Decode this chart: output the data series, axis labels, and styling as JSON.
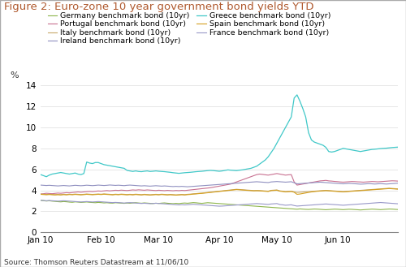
{
  "title": "Figure 2: Euro-zone 10 year government bond yields YTD",
  "ylabel": "%",
  "source": "Source: Thomson Reuters Datastream at 11/06/10",
  "ylim": [
    0,
    14
  ],
  "yticks": [
    0,
    2,
    4,
    6,
    8,
    10,
    12,
    14
  ],
  "series": {
    "Germany": {
      "color": "#8db54b",
      "linewidth": 0.8,
      "label": "Germany benchmark bond (10yr)",
      "data": [
        3.05,
        3.02,
        2.98,
        3.01,
        2.97,
        2.95,
        2.92,
        2.9,
        2.93,
        2.91,
        2.88,
        2.86,
        2.9,
        2.88,
        2.85,
        2.87,
        2.89,
        2.86,
        2.84,
        2.82,
        2.85,
        2.83,
        2.8,
        2.82,
        2.79,
        2.78,
        2.82,
        2.8,
        2.78,
        2.76,
        2.79,
        2.77,
        2.8,
        2.82,
        2.79,
        2.77,
        2.8,
        2.78,
        2.76,
        2.74,
        2.77,
        2.75,
        2.78,
        2.8,
        2.77,
        2.75,
        2.73,
        2.76,
        2.74,
        2.77,
        2.79,
        2.77,
        2.8,
        2.83,
        2.81,
        2.78,
        2.76,
        2.79,
        2.82,
        2.8,
        2.78,
        2.76,
        2.74,
        2.72,
        2.7,
        2.68,
        2.66,
        2.64,
        2.62,
        2.6,
        2.58,
        2.56,
        2.54,
        2.52,
        2.5,
        2.48,
        2.46,
        2.44,
        2.42,
        2.4,
        2.38,
        2.36,
        2.34,
        2.32,
        2.3,
        2.28,
        2.26,
        2.24,
        2.22,
        2.2,
        2.23,
        2.21,
        2.19,
        2.18,
        2.2,
        2.22,
        2.21,
        2.19,
        2.17,
        2.15,
        2.17,
        2.19,
        2.21,
        2.2,
        2.18,
        2.16,
        2.18,
        2.2,
        2.19,
        2.17,
        2.15,
        2.13,
        2.15,
        2.17,
        2.19,
        2.21,
        2.2,
        2.18,
        2.16,
        2.18,
        2.2,
        2.22,
        2.21,
        2.19,
        2.17
      ]
    },
    "Portugal": {
      "color": "#c87090",
      "linewidth": 0.8,
      "label": "Portugal benchmark bond (10yr)",
      "data": [
        3.65,
        3.68,
        3.72,
        3.7,
        3.68,
        3.71,
        3.74,
        3.72,
        3.75,
        3.78,
        3.76,
        3.79,
        3.82,
        3.85,
        3.82,
        3.85,
        3.88,
        3.9,
        3.88,
        3.91,
        3.94,
        3.92,
        3.95,
        3.98,
        3.95,
        3.98,
        4.01,
        3.99,
        4.02,
        4.0,
        3.98,
        4.01,
        4.04,
        4.02,
        4.05,
        4.03,
        4.01,
        4.04,
        4.02,
        4.0,
        3.98,
        4.01,
        3.99,
        3.97,
        4.0,
        3.98,
        3.96,
        3.99,
        3.97,
        4.0,
        3.98,
        4.01,
        4.04,
        4.07,
        4.1,
        4.13,
        4.16,
        4.19,
        4.22,
        4.25,
        4.3,
        4.35,
        4.4,
        4.45,
        4.5,
        4.55,
        4.6,
        4.7,
        4.8,
        4.9,
        5.0,
        5.1,
        5.2,
        5.3,
        5.4,
        5.5,
        5.55,
        5.52,
        5.48,
        5.45,
        5.5,
        5.55,
        5.6,
        5.55,
        5.5,
        5.45,
        5.48,
        5.5,
        4.8,
        4.5,
        4.55,
        4.6,
        4.65,
        4.7,
        4.75,
        4.8,
        4.85,
        4.9,
        4.92,
        4.95,
        4.9,
        4.88,
        4.85,
        4.83,
        4.8,
        4.78,
        4.8,
        4.82,
        4.84,
        4.83,
        4.81,
        4.8,
        4.78,
        4.8,
        4.82,
        4.84,
        4.83,
        4.81,
        4.83,
        4.85,
        4.87,
        4.89,
        4.91,
        4.9,
        4.88
      ]
    },
    "Italy": {
      "color": "#c8a86a",
      "linewidth": 0.8,
      "label": "Italy benchmark bond (10yr)",
      "data": [
        3.65,
        3.63,
        3.61,
        3.63,
        3.61,
        3.59,
        3.61,
        3.59,
        3.62,
        3.6,
        3.63,
        3.61,
        3.64,
        3.62,
        3.6,
        3.62,
        3.65,
        3.63,
        3.61,
        3.63,
        3.65,
        3.63,
        3.66,
        3.64,
        3.62,
        3.6,
        3.63,
        3.61,
        3.64,
        3.62,
        3.6,
        3.62,
        3.6,
        3.63,
        3.61,
        3.59,
        3.62,
        3.6,
        3.58,
        3.6,
        3.62,
        3.6,
        3.63,
        3.61,
        3.59,
        3.61,
        3.59,
        3.57,
        3.59,
        3.61,
        3.59,
        3.62,
        3.64,
        3.67,
        3.69,
        3.72,
        3.74,
        3.77,
        3.8,
        3.83,
        3.86,
        3.89,
        3.92,
        3.95,
        3.98,
        4.01,
        4.04,
        4.07,
        4.1,
        4.08,
        4.06,
        4.04,
        4.02,
        4.0,
        3.98,
        3.99,
        3.98,
        3.96,
        3.94,
        3.92,
        4.0,
        4.02,
        4.04,
        3.95,
        3.92,
        3.88,
        3.9,
        3.92,
        3.85,
        3.8,
        3.82,
        3.84,
        3.86,
        3.88,
        3.9,
        3.92,
        3.94,
        3.96,
        3.98,
        4.0,
        3.98,
        3.96,
        3.94,
        3.92,
        3.9,
        3.88,
        3.9,
        3.92,
        3.94,
        3.96,
        3.98,
        4.0,
        4.02,
        4.04,
        4.06,
        4.08,
        4.1,
        4.12,
        4.14,
        4.16,
        4.18,
        4.2,
        4.18,
        4.16,
        4.14
      ]
    },
    "Ireland": {
      "color": "#9090c0",
      "linewidth": 0.8,
      "label": "Ireland benchmark bond (10yr)",
      "data": [
        4.5,
        4.48,
        4.46,
        4.48,
        4.46,
        4.44,
        4.42,
        4.44,
        4.46,
        4.44,
        4.42,
        4.45,
        4.48,
        4.46,
        4.44,
        4.46,
        4.49,
        4.47,
        4.45,
        4.47,
        4.5,
        4.48,
        4.46,
        4.48,
        4.51,
        4.49,
        4.47,
        4.49,
        4.47,
        4.45,
        4.48,
        4.5,
        4.48,
        4.46,
        4.44,
        4.42,
        4.44,
        4.42,
        4.4,
        4.42,
        4.44,
        4.42,
        4.4,
        4.42,
        4.4,
        4.38,
        4.36,
        4.38,
        4.36,
        4.38,
        4.36,
        4.34,
        4.36,
        4.38,
        4.4,
        4.42,
        4.44,
        4.46,
        4.48,
        4.5,
        4.52,
        4.54,
        4.56,
        4.58,
        4.6,
        4.62,
        4.64,
        4.66,
        4.68,
        4.7,
        4.72,
        4.74,
        4.76,
        4.78,
        4.8,
        4.82,
        4.8,
        4.78,
        4.76,
        4.74,
        4.8,
        4.82,
        4.84,
        4.82,
        4.8,
        4.78,
        4.8,
        4.82,
        4.72,
        4.62,
        4.64,
        4.66,
        4.68,
        4.7,
        4.72,
        4.74,
        4.76,
        4.78,
        4.76,
        4.74,
        4.72,
        4.7,
        4.68,
        4.66,
        4.64,
        4.62,
        4.64,
        4.66,
        4.65,
        4.63,
        4.61,
        4.59,
        4.6,
        4.62,
        4.64,
        4.62,
        4.6,
        4.62,
        4.64,
        4.62,
        4.6,
        4.62,
        4.64,
        4.66,
        4.68
      ]
    },
    "Greece": {
      "color": "#40c8c8",
      "linewidth": 0.9,
      "label": "Greece benchmark bond (10yr)",
      "data": [
        5.5,
        5.4,
        5.3,
        5.45,
        5.55,
        5.6,
        5.65,
        5.7,
        5.65,
        5.6,
        5.55,
        5.6,
        5.65,
        5.55,
        5.5,
        5.6,
        6.7,
        6.6,
        6.55,
        6.65,
        6.65,
        6.55,
        6.45,
        6.4,
        6.35,
        6.3,
        6.25,
        6.2,
        6.15,
        6.1,
        5.9,
        5.85,
        5.8,
        5.85,
        5.8,
        5.78,
        5.82,
        5.85,
        5.8,
        5.82,
        5.85,
        5.82,
        5.8,
        5.78,
        5.75,
        5.72,
        5.68,
        5.65,
        5.62,
        5.65,
        5.68,
        5.7,
        5.72,
        5.75,
        5.78,
        5.8,
        5.82,
        5.85,
        5.88,
        5.9,
        5.88,
        5.85,
        5.82,
        5.85,
        5.9,
        5.95,
        5.92,
        5.9,
        5.88,
        5.92,
        5.95,
        6.0,
        6.05,
        6.1,
        6.2,
        6.3,
        6.5,
        6.7,
        6.9,
        7.2,
        7.6,
        8.0,
        8.5,
        9.0,
        9.5,
        10.0,
        10.5,
        11.0,
        12.8,
        13.1,
        12.5,
        11.8,
        11.0,
        9.5,
        8.8,
        8.6,
        8.5,
        8.4,
        8.3,
        8.1,
        7.7,
        7.65,
        7.7,
        7.8,
        7.9,
        8.0,
        7.95,
        7.9,
        7.85,
        7.8,
        7.75,
        7.7,
        7.75,
        7.8,
        7.85,
        7.9,
        7.92,
        7.95,
        7.98,
        8.0,
        8.02,
        8.05,
        8.08,
        8.1,
        8.12
      ]
    },
    "Spain": {
      "color": "#d4a020",
      "linewidth": 0.8,
      "label": "Spain benchmark bond (10yr)",
      "data": [
        3.62,
        3.6,
        3.58,
        3.6,
        3.58,
        3.56,
        3.58,
        3.56,
        3.59,
        3.57,
        3.6,
        3.58,
        3.61,
        3.59,
        3.57,
        3.59,
        3.62,
        3.6,
        3.58,
        3.6,
        3.62,
        3.6,
        3.63,
        3.61,
        3.59,
        3.57,
        3.6,
        3.58,
        3.61,
        3.59,
        3.57,
        3.59,
        3.57,
        3.6,
        3.58,
        3.56,
        3.59,
        3.57,
        3.55,
        3.57,
        3.59,
        3.57,
        3.6,
        3.58,
        3.56,
        3.58,
        3.56,
        3.54,
        3.56,
        3.58,
        3.56,
        3.59,
        3.61,
        3.64,
        3.66,
        3.69,
        3.71,
        3.74,
        3.77,
        3.8,
        3.83,
        3.86,
        3.89,
        3.92,
        3.95,
        3.98,
        4.01,
        4.04,
        4.07,
        4.05,
        4.03,
        4.01,
        3.99,
        3.97,
        3.95,
        3.96,
        3.95,
        3.93,
        3.91,
        3.89,
        3.97,
        3.99,
        4.01,
        3.92,
        3.89,
        3.85,
        3.87,
        3.89,
        3.82,
        3.62,
        3.65,
        3.7,
        3.75,
        3.8,
        3.85,
        3.88,
        3.91,
        3.93,
        3.95,
        3.97,
        3.95,
        3.93,
        3.91,
        3.89,
        3.87,
        3.85,
        3.87,
        3.89,
        3.91,
        3.93,
        3.95,
        3.97,
        3.99,
        4.01,
        4.03,
        4.05,
        4.07,
        4.09,
        4.11,
        4.13,
        4.15,
        4.17,
        4.15,
        4.13,
        4.11
      ]
    },
    "France": {
      "color": "#9898c8",
      "linewidth": 0.8,
      "label": "France benchmark bond (10yr)",
      "data": [
        3.05,
        3.03,
        3.01,
        3.03,
        3.01,
        2.99,
        2.97,
        2.99,
        3.01,
        2.99,
        2.97,
        2.95,
        2.93,
        2.91,
        2.89,
        2.91,
        2.93,
        2.91,
        2.89,
        2.91,
        2.93,
        2.91,
        2.89,
        2.87,
        2.85,
        2.83,
        2.85,
        2.83,
        2.81,
        2.79,
        2.81,
        2.83,
        2.81,
        2.79,
        2.77,
        2.75,
        2.77,
        2.75,
        2.73,
        2.75,
        2.77,
        2.75,
        2.73,
        2.71,
        2.69,
        2.67,
        2.65,
        2.63,
        2.61,
        2.63,
        2.61,
        2.63,
        2.65,
        2.67,
        2.65,
        2.63,
        2.61,
        2.59,
        2.57,
        2.55,
        2.53,
        2.51,
        2.49,
        2.5,
        2.52,
        2.54,
        2.56,
        2.58,
        2.6,
        2.62,
        2.64,
        2.66,
        2.68,
        2.7,
        2.72,
        2.74,
        2.72,
        2.7,
        2.68,
        2.66,
        2.7,
        2.72,
        2.74,
        2.65,
        2.62,
        2.58,
        2.6,
        2.62,
        2.55,
        2.5,
        2.52,
        2.54,
        2.56,
        2.58,
        2.6,
        2.62,
        2.64,
        2.66,
        2.68,
        2.7,
        2.68,
        2.66,
        2.64,
        2.62,
        2.6,
        2.58,
        2.6,
        2.62,
        2.64,
        2.66,
        2.68,
        2.7,
        2.72,
        2.74,
        2.76,
        2.78,
        2.8,
        2.82,
        2.84,
        2.82,
        2.8,
        2.78,
        2.76,
        2.74,
        2.72
      ]
    }
  },
  "xtick_labels": [
    "Jan 10",
    "Feb 10",
    "Mar 10",
    "Apr 10",
    "May 10",
    "Jun 10"
  ],
  "xtick_positions": [
    0,
    21,
    41,
    62,
    82,
    103
  ],
  "n_points": 125,
  "background_color": "#ffffff",
  "title_color": "#b05a2f",
  "title_fontsize": 9.5,
  "axis_fontsize": 7.5,
  "legend_fontsize": 6.8,
  "source_text": "Source: Thomson Reuters Datastream at 11/06/10",
  "border_color": "#aaaaaa"
}
